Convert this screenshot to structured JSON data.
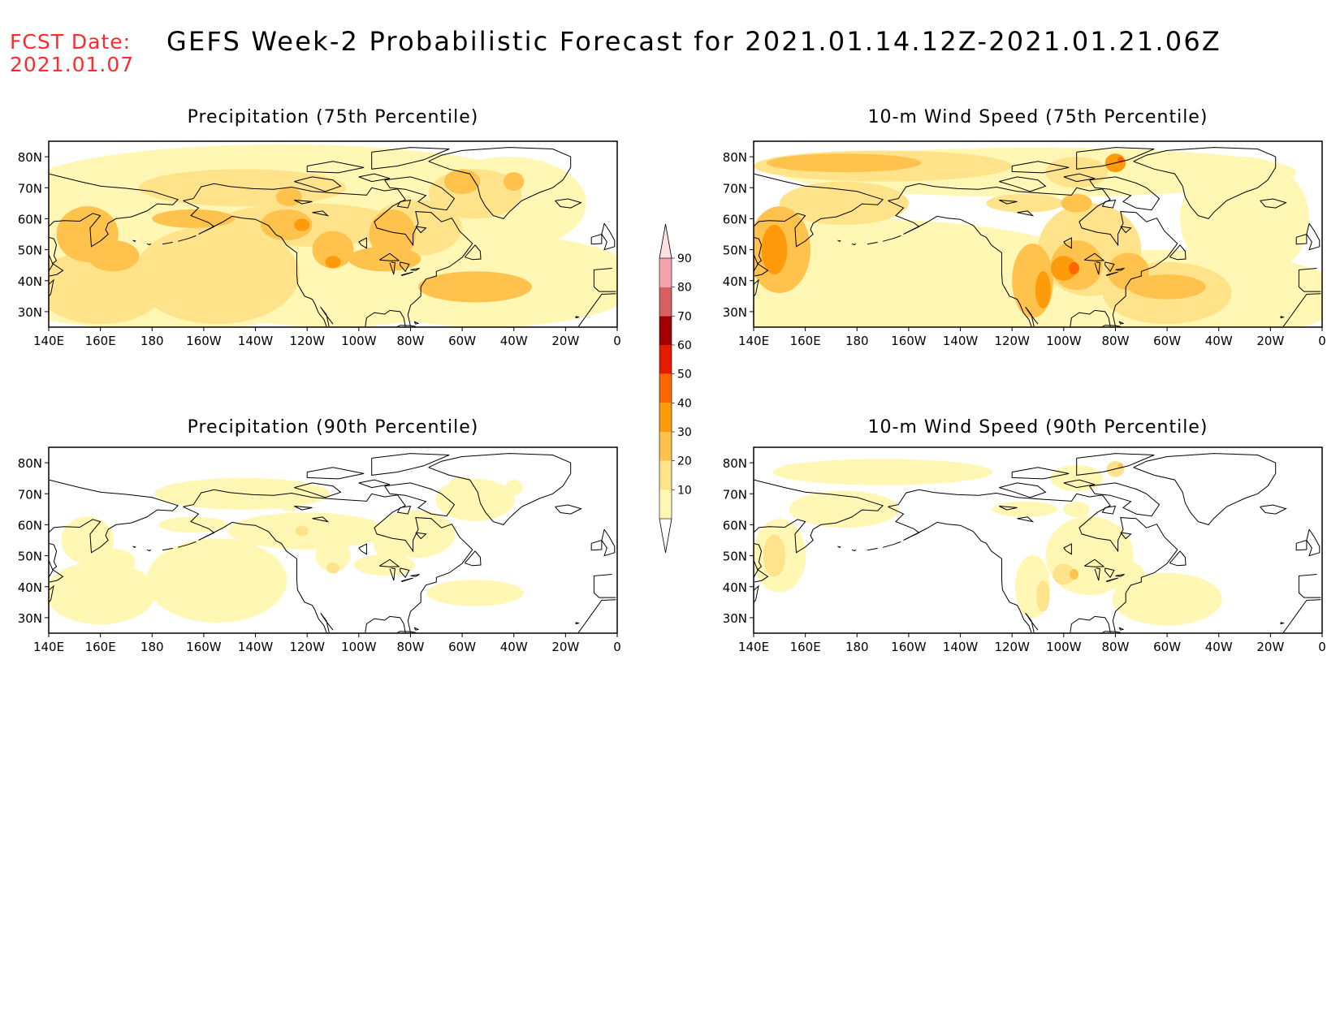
{
  "header": {
    "fcst_label": "FCST Date:",
    "fcst_date": "2021.01.07",
    "title": "GEFS Week-2 Probabilistic Forecast for 2021.01.14.12Z-2021.01.21.06Z"
  },
  "colors": {
    "fcst": "#ff2a2a",
    "levels": [
      "#fff7b3",
      "#ffe38a",
      "#ffc34d",
      "#ff9a0a",
      "#ff6600",
      "#e61a00",
      "#a00000",
      "#d96060",
      "#f2a3ae",
      "#fde0e4"
    ],
    "coast": "#000000"
  },
  "axes": {
    "lon_ticks": [
      "140E",
      "160E",
      "180",
      "160W",
      "140W",
      "120W",
      "100W",
      "80W",
      "60W",
      "40W",
      "20W",
      "0"
    ],
    "lat_ticks": [
      "80N",
      "70N",
      "60N",
      "50N",
      "40N",
      "30N"
    ]
  },
  "panels": [
    {
      "id": "precip75",
      "title": "Precipitation (75th Percentile)",
      "intensity": 1.0
    },
    {
      "id": "wind75",
      "title": "10-m Wind Speed (75th Percentile)",
      "intensity": 1.0
    },
    {
      "id": "precip90",
      "title": "Precipitation (90th Percentile)",
      "intensity": 0.45
    },
    {
      "id": "wind90",
      "title": "10-m Wind Speed (90th Percentile)",
      "intensity": 0.45
    }
  ],
  "colorbar": {
    "labels": [
      "10",
      "20",
      "30",
      "40",
      "50",
      "60",
      "70",
      "80",
      "90"
    ]
  }
}
